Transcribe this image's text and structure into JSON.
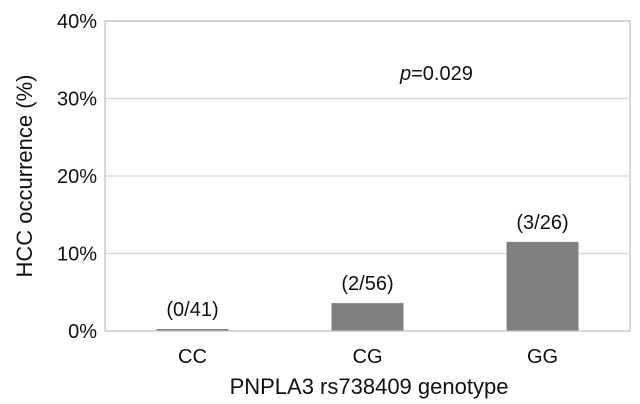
{
  "chart_data": {
    "type": "bar",
    "title": "",
    "xlabel": "PNPLA3 rs738409 genotype",
    "ylabel": "HCC occurrence (%)",
    "categories": [
      "CC",
      "CG",
      "GG"
    ],
    "values": [
      0.0,
      3.6,
      11.5
    ],
    "data_labels": [
      "(0/41)",
      "(2/56)",
      "(3/26)"
    ],
    "ylim": [
      0,
      40
    ],
    "yticks": [
      0,
      10,
      20,
      30,
      40
    ],
    "ytick_labels": [
      "0%",
      "10%",
      "20%",
      "30%",
      "40%"
    ],
    "grid": true,
    "legend": "none",
    "annotation": {
      "italic": "p",
      "rest": "=0.029"
    },
    "colors": {
      "bar": "#808080",
      "grid": "#d9d9d9",
      "frame": "#bfbfbf"
    }
  }
}
